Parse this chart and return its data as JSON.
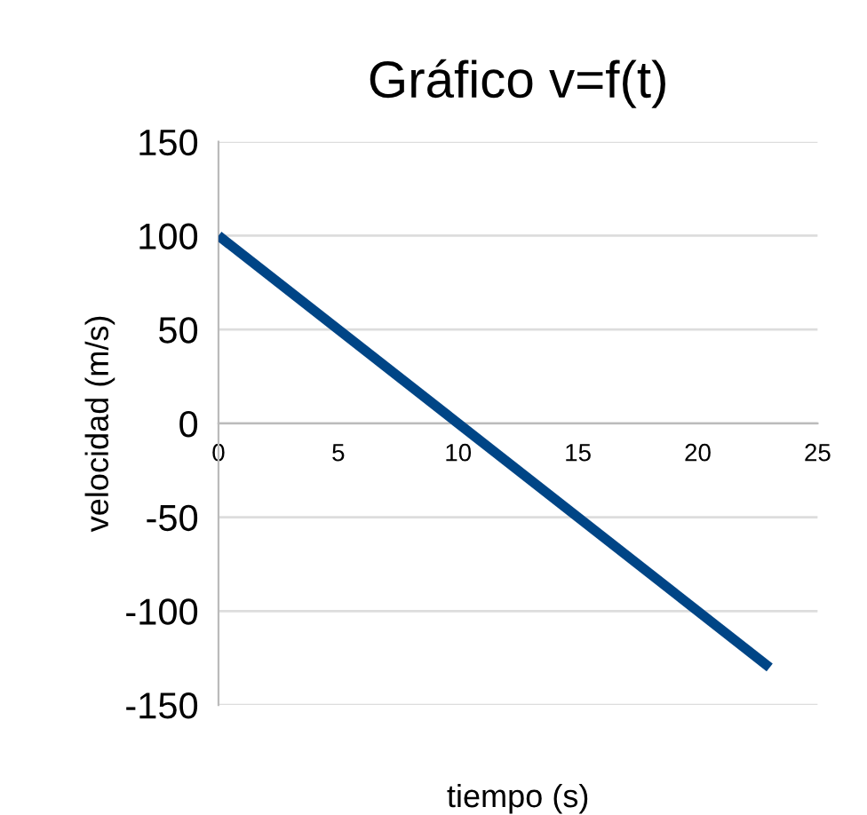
{
  "chart_data": {
    "type": "line",
    "title": "Gráfico v=f(t)",
    "xlabel": "tiempo (s)",
    "ylabel": "velocidad (m/s)",
    "series": [
      {
        "x": [
          0,
          23
        ],
        "values": [
          100,
          -130
        ],
        "color": "#004586"
      }
    ],
    "xlim": [
      0,
      25
    ],
    "xticks": [
      0,
      5,
      10,
      15,
      20,
      25
    ],
    "ylim": [
      -150,
      150
    ],
    "yticks": [
      -150,
      -100,
      -50,
      0,
      50,
      100,
      150
    ],
    "grid": "y",
    "legend": false,
    "marker": "none",
    "line_style": "solid"
  }
}
